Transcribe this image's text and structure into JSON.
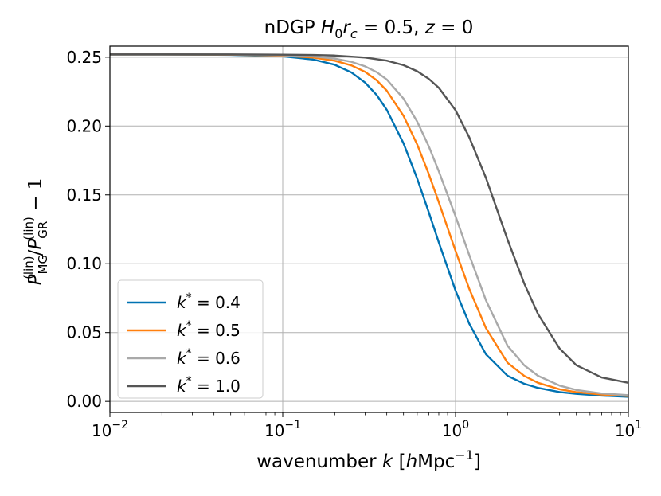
{
  "chart_data": {
    "type": "line",
    "title": "nDGP H₀r꜀ = 0.5, z = 0",
    "title_parts": {
      "model": "nDGP ",
      "H": "H",
      "H_sub": "0",
      "r": "r",
      "r_sub": "c",
      "eq1": " = 0.5, ",
      "z": "z",
      "eq2": " = 0"
    },
    "xlabel": "wavenumber k [hMpc⁻¹]",
    "xlabel_parts": {
      "pre": "wavenumber ",
      "k": "k",
      "mid1": " [",
      "h": "h",
      "mpc": "Mpc",
      "sup": "−1",
      "post": "]"
    },
    "ylabel": "P_MG^(lin)/P_GR^(lin) − 1",
    "ylabel_parts": {
      "P": "P",
      "sub1": "MG",
      "sup1": "(lin)",
      "slash": "/",
      "sub2": "GR",
      "sup2": "(lin)",
      "tail": " − 1"
    },
    "xscale": "log",
    "xlim": [
      0.01,
      10
    ],
    "ylim": [
      -0.008,
      0.258
    ],
    "grid": true,
    "legend_position": "lower-left",
    "xticks": [
      {
        "value": 0.01,
        "base": "10",
        "exp": "−2"
      },
      {
        "value": 0.1,
        "base": "10",
        "exp": "−1"
      },
      {
        "value": 1,
        "base": "10",
        "exp": "0"
      },
      {
        "value": 10,
        "base": "10",
        "exp": "1"
      }
    ],
    "yticks": [
      {
        "value": 0.0,
        "label": "0.00"
      },
      {
        "value": 0.05,
        "label": "0.05"
      },
      {
        "value": 0.1,
        "label": "0.10"
      },
      {
        "value": 0.15,
        "label": "0.15"
      },
      {
        "value": 0.2,
        "label": "0.20"
      },
      {
        "value": 0.25,
        "label": "0.25"
      }
    ],
    "series": [
      {
        "name": "k* = 0.4",
        "legend_k": "k",
        "legend_star": "*",
        "legend_eq": " = 0.4",
        "color": "#0072b2",
        "x": [
          0.01,
          0.02,
          0.05,
          0.1,
          0.15,
          0.2,
          0.25,
          0.3,
          0.35,
          0.4,
          0.5,
          0.6,
          0.7,
          0.8,
          1.0,
          1.2,
          1.5,
          2.0,
          2.5,
          3.0,
          4.0,
          5.0,
          7.0,
          10.0
        ],
        "y": [
          0.252,
          0.252,
          0.2517,
          0.2506,
          0.2483,
          0.2445,
          0.2389,
          0.2315,
          0.2225,
          0.2118,
          0.1874,
          0.1618,
          0.1374,
          0.1155,
          0.0805,
          0.0565,
          0.0342,
          0.0186,
          0.0128,
          0.0098,
          0.0068,
          0.0055,
          0.0042,
          0.0033
        ]
      },
      {
        "name": "k* = 0.5",
        "legend_k": "k",
        "legend_star": "*",
        "legend_eq": " = 0.5",
        "color": "#ff7f0e",
        "x": [
          0.01,
          0.02,
          0.05,
          0.1,
          0.15,
          0.2,
          0.25,
          0.3,
          0.35,
          0.4,
          0.5,
          0.6,
          0.7,
          0.8,
          1.0,
          1.2,
          1.5,
          2.0,
          2.5,
          3.0,
          4.0,
          5.0,
          7.0,
          10.0
        ],
        "y": [
          0.252,
          0.252,
          0.2518,
          0.2511,
          0.2497,
          0.2474,
          0.244,
          0.2393,
          0.2332,
          0.2257,
          0.2074,
          0.1866,
          0.1652,
          0.1447,
          0.1093,
          0.0818,
          0.0532,
          0.028,
          0.0185,
          0.0135,
          0.0088,
          0.0067,
          0.005,
          0.0039
        ]
      },
      {
        "name": "k* = 0.6",
        "legend_k": "k",
        "legend_star": "*",
        "legend_eq": " = 0.6",
        "color": "#a9a9a9",
        "x": [
          0.01,
          0.02,
          0.05,
          0.1,
          0.15,
          0.2,
          0.25,
          0.3,
          0.35,
          0.4,
          0.5,
          0.6,
          0.7,
          0.8,
          1.0,
          1.2,
          1.5,
          2.0,
          2.5,
          3.0,
          4.0,
          5.0,
          7.0,
          10.0
        ],
        "y": [
          0.252,
          0.252,
          0.2519,
          0.2514,
          0.2505,
          0.2489,
          0.2466,
          0.2433,
          0.2391,
          0.2338,
          0.2199,
          0.2032,
          0.1853,
          0.1672,
          0.1345,
          0.1064,
          0.0734,
          0.0404,
          0.0262,
          0.0186,
          0.0115,
          0.0083,
          0.0058,
          0.0045
        ]
      },
      {
        "name": "k* = 1.0",
        "legend_k": "k",
        "legend_star": "*",
        "legend_eq": " = 1.0",
        "color": "#555555",
        "x": [
          0.01,
          0.02,
          0.05,
          0.1,
          0.15,
          0.2,
          0.3,
          0.4,
          0.5,
          0.6,
          0.7,
          0.8,
          1.0,
          1.2,
          1.5,
          2.0,
          2.5,
          3.0,
          4.0,
          5.0,
          7.0,
          10.0
        ],
        "y": [
          0.252,
          0.252,
          0.252,
          0.2518,
          0.2516,
          0.2512,
          0.2497,
          0.2475,
          0.2442,
          0.2398,
          0.2343,
          0.2278,
          0.2115,
          0.1919,
          0.1623,
          0.1175,
          0.0855,
          0.0635,
          0.0384,
          0.0263,
          0.0174,
          0.0135
        ]
      }
    ]
  }
}
